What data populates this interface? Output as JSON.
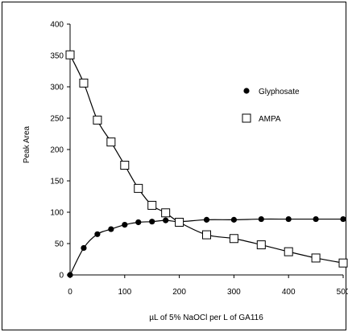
{
  "chart_data": {
    "type": "scatter",
    "title": "",
    "xlabel": "µL of 5% NaOCl per L of GA116",
    "ylabel": "Peak Area",
    "xlim": [
      0,
      500
    ],
    "ylim": [
      0,
      400
    ],
    "xticks": [
      0,
      100,
      200,
      300,
      400,
      500
    ],
    "yticks": [
      0,
      50,
      100,
      150,
      200,
      250,
      300,
      350,
      400
    ],
    "grid": false,
    "legend_position": "right",
    "series": [
      {
        "name": "Glyphosate",
        "marker": "filled-circle",
        "color": "#000000",
        "x": [
          0,
          25,
          50,
          75,
          100,
          125,
          150,
          175,
          200,
          250,
          300,
          350,
          400,
          450,
          500
        ],
        "y": [
          0,
          43,
          65,
          73,
          80,
          84,
          85,
          87,
          85,
          88,
          88,
          89,
          89,
          89,
          89
        ]
      },
      {
        "name": "AMPA",
        "marker": "open-square",
        "color": "#000000",
        "x": [
          0,
          25,
          50,
          75,
          100,
          125,
          150,
          175,
          200,
          250,
          300,
          350,
          400,
          450,
          500
        ],
        "y": [
          351,
          306,
          247,
          212,
          175,
          138,
          111,
          99,
          84,
          64,
          58,
          48,
          37,
          27,
          19
        ]
      }
    ]
  }
}
